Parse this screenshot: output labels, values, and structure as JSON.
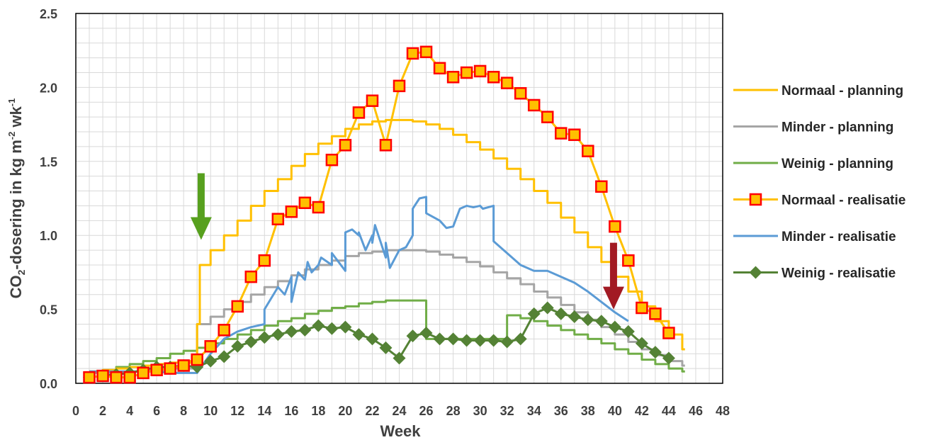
{
  "chart_data": {
    "type": "line",
    "xlabel": "Week",
    "ylabel": {
      "prefix": "CO",
      "sub": "2",
      "mid": "-dosering  in kg m",
      "sup1": "-2",
      "mid2": " wk",
      "sup2": "-1"
    },
    "xlim": [
      0,
      48
    ],
    "ylim": [
      0,
      2.5
    ],
    "xticks": [
      "0",
      "2",
      "4",
      "6",
      "8",
      "10",
      "12",
      "14",
      "16",
      "18",
      "20",
      "22",
      "24",
      "26",
      "28",
      "30",
      "32",
      "34",
      "36",
      "38",
      "40",
      "42",
      "44",
      "46",
      "48"
    ],
    "yticks": [
      "0.0",
      "0.5",
      "1.0",
      "1.5",
      "2.0",
      "2.5"
    ],
    "grid": true,
    "legend_position": "right",
    "series": [
      {
        "name": "Normaal - planning",
        "color": "#FFC000",
        "style": "step",
        "x": [
          1,
          2,
          3,
          4,
          5,
          6,
          7,
          8,
          9,
          9.2,
          10,
          11,
          12,
          13,
          14,
          15,
          16,
          17,
          18,
          19,
          20,
          21,
          22,
          23,
          24,
          25,
          26,
          27,
          28,
          29,
          30,
          31,
          32,
          33,
          34,
          35,
          36,
          37,
          38,
          39,
          40,
          41,
          42,
          43,
          44,
          45
        ],
        "values": [
          0.08,
          0.09,
          0.1,
          0.11,
          0.12,
          0.13,
          0.14,
          0.15,
          0.4,
          0.8,
          0.9,
          1.0,
          1.1,
          1.2,
          1.3,
          1.38,
          1.47,
          1.55,
          1.62,
          1.67,
          1.72,
          1.75,
          1.77,
          1.78,
          1.78,
          1.77,
          1.75,
          1.72,
          1.68,
          1.63,
          1.58,
          1.52,
          1.45,
          1.38,
          1.3,
          1.22,
          1.12,
          1.02,
          0.92,
          0.82,
          0.72,
          0.62,
          0.52,
          0.42,
          0.33,
          0.23
        ]
      },
      {
        "name": "Minder - planning",
        "color": "#A5A5A5",
        "style": "step",
        "x": [
          1,
          2,
          3,
          4,
          5,
          6,
          7,
          8,
          9,
          10,
          11,
          12,
          13,
          14,
          15,
          16,
          17,
          18,
          19,
          20,
          21,
          22,
          23,
          24,
          25,
          26,
          27,
          28,
          29,
          30,
          31,
          32,
          33,
          34,
          35,
          36,
          37,
          38,
          39,
          40,
          41,
          42,
          43,
          44,
          45
        ],
        "values": [
          0.07,
          0.07,
          0.08,
          0.08,
          0.09,
          0.09,
          0.1,
          0.1,
          0.4,
          0.45,
          0.5,
          0.55,
          0.6,
          0.65,
          0.69,
          0.73,
          0.77,
          0.8,
          0.83,
          0.86,
          0.88,
          0.89,
          0.9,
          0.9,
          0.9,
          0.89,
          0.87,
          0.85,
          0.82,
          0.79,
          0.75,
          0.71,
          0.67,
          0.62,
          0.58,
          0.53,
          0.48,
          0.43,
          0.38,
          0.33,
          0.28,
          0.23,
          0.19,
          0.15,
          0.12
        ]
      },
      {
        "name": "Weinig - planning",
        "color": "#70AD47",
        "style": "step",
        "x": [
          1,
          2,
          3,
          4,
          5,
          6,
          7,
          8,
          9,
          10,
          11,
          12,
          13,
          14,
          15,
          16,
          17,
          18,
          19,
          20,
          21,
          22,
          23,
          24,
          25,
          26,
          27,
          28,
          29,
          30,
          31,
          32,
          33,
          34,
          35,
          36,
          37,
          38,
          39,
          40,
          41,
          42,
          43,
          44,
          45
        ],
        "values": [
          0.08,
          0.09,
          0.11,
          0.13,
          0.15,
          0.17,
          0.2,
          0.22,
          0.24,
          0.27,
          0.3,
          0.33,
          0.36,
          0.39,
          0.42,
          0.44,
          0.47,
          0.49,
          0.51,
          0.52,
          0.54,
          0.55,
          0.56,
          0.56,
          0.56,
          0.3,
          0.3,
          0.3,
          0.3,
          0.3,
          0.3,
          0.46,
          0.44,
          0.42,
          0.39,
          0.36,
          0.33,
          0.3,
          0.27,
          0.23,
          0.2,
          0.16,
          0.13,
          0.1,
          0.08
        ]
      },
      {
        "name": "Normaal - realisatie",
        "color": "#FFC000",
        "marker": "square",
        "marker_edge": "#FF0000",
        "x": [
          1,
          2,
          3,
          4,
          5,
          6,
          7,
          8,
          9,
          10,
          11,
          12,
          13,
          14,
          15,
          16,
          17,
          18,
          19,
          20,
          21,
          22,
          23,
          24,
          25,
          26,
          27,
          28,
          29,
          30,
          31,
          32,
          33,
          34,
          35,
          36,
          37,
          38,
          39,
          40,
          41,
          42,
          43,
          44
        ],
        "values": [
          0.04,
          0.05,
          0.04,
          0.04,
          0.07,
          0.09,
          0.1,
          0.12,
          0.16,
          0.25,
          0.36,
          0.52,
          0.72,
          0.83,
          1.11,
          1.16,
          1.22,
          1.19,
          1.51,
          1.61,
          1.83,
          1.91,
          1.61,
          2.01,
          2.23,
          2.24,
          2.13,
          2.07,
          2.1,
          2.11,
          2.07,
          2.03,
          1.96,
          1.88,
          1.8,
          1.69,
          1.68,
          1.57,
          1.33,
          1.06,
          0.83,
          0.51,
          0.47,
          0.34
        ]
      },
      {
        "name": "Minder - realisatie",
        "color": "#5B9BD5",
        "style": "irregular",
        "x": [
          1,
          2,
          3,
          4,
          5,
          6,
          7,
          8,
          9,
          10,
          11,
          12,
          13,
          14,
          14,
          15,
          15.5,
          16,
          16,
          16.5,
          17,
          17.2,
          17.5,
          18,
          18.2,
          19,
          19,
          19.5,
          20,
          20,
          20.5,
          21,
          21,
          21.5,
          22,
          22,
          22.2,
          23,
          23,
          23.3,
          24,
          24.5,
          25,
          25,
          25.5,
          26,
          26,
          27,
          27.5,
          28,
          28.5,
          29,
          29.5,
          30,
          30.2,
          31,
          31,
          32,
          33,
          33.5,
          34,
          35,
          36,
          37,
          38,
          39,
          40,
          41
        ],
        "values": [
          0.08,
          0.08,
          0.08,
          0.08,
          0.08,
          0.08,
          0.07,
          0.07,
          0.07,
          0.2,
          0.3,
          0.35,
          0.38,
          0.4,
          0.5,
          0.65,
          0.6,
          0.72,
          0.55,
          0.75,
          0.7,
          0.82,
          0.75,
          0.8,
          0.85,
          0.8,
          0.88,
          0.82,
          0.76,
          1.02,
          1.04,
          1.0,
          1.02,
          0.9,
          1.0,
          0.95,
          1.07,
          0.85,
          0.95,
          0.78,
          0.9,
          0.92,
          1.0,
          1.18,
          1.25,
          1.26,
          1.15,
          1.1,
          1.05,
          1.06,
          1.18,
          1.2,
          1.19,
          1.2,
          1.18,
          1.2,
          0.96,
          0.88,
          0.8,
          0.78,
          0.76,
          0.76,
          0.72,
          0.68,
          0.62,
          0.55,
          0.48,
          0.42
        ]
      },
      {
        "name": "Weinig - realisatie",
        "color": "#548235",
        "marker": "diamond",
        "x": [
          1,
          2,
          3,
          4,
          5,
          6,
          7,
          8,
          9,
          10,
          11,
          12,
          13,
          14,
          15,
          16,
          17,
          18,
          19,
          20,
          21,
          22,
          23,
          24,
          25,
          26,
          27,
          28,
          29,
          30,
          31,
          32,
          33,
          34,
          35,
          36,
          37,
          38,
          39,
          40,
          41,
          42,
          43,
          44
        ],
        "values": [
          0.04,
          0.05,
          0.06,
          0.07,
          0.09,
          0.11,
          0.11,
          0.12,
          0.11,
          0.15,
          0.18,
          0.25,
          0.28,
          0.31,
          0.33,
          0.35,
          0.36,
          0.39,
          0.37,
          0.38,
          0.33,
          0.3,
          0.24,
          0.17,
          0.32,
          0.34,
          0.3,
          0.3,
          0.29,
          0.29,
          0.29,
          0.28,
          0.3,
          0.47,
          0.51,
          0.47,
          0.45,
          0.43,
          0.42,
          0.38,
          0.35,
          0.27,
          0.21,
          0.17
        ]
      }
    ],
    "annotations": [
      {
        "type": "arrow",
        "direction": "down",
        "color": "#57A01E",
        "x": 9.3,
        "y_top": 1.42,
        "y_tip": 0.97
      },
      {
        "type": "arrow",
        "direction": "down",
        "color": "#A21A23",
        "x": 39.9,
        "y_top": 0.95,
        "y_tip": 0.5
      }
    ]
  }
}
